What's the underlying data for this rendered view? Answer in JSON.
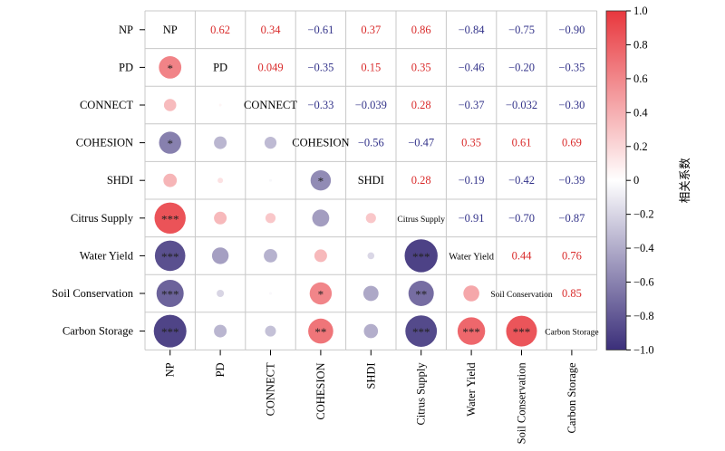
{
  "chart_data": {
    "type": "heatmap",
    "style": "correlation matrix: circles with significance stars in lower triangle, coefficient values in upper triangle, variable names on diagonal",
    "variables": [
      "NP",
      "PD",
      "CONNECT",
      "COHESION",
      "SHDI",
      "Citrus Supply",
      "Water Yield",
      "Soil Conservation",
      "Carbon Storage"
    ],
    "upper_labels": [
      [
        null,
        "0.62",
        "0.34",
        "−0.61",
        "0.37",
        "0.86",
        "−0.84",
        "−0.75",
        "−0.90"
      ],
      [
        null,
        null,
        "0.049",
        "−0.35",
        "0.15",
        "0.35",
        "−0.46",
        "−0.20",
        "−0.35"
      ],
      [
        null,
        null,
        null,
        "−0.33",
        "−0.039",
        "0.28",
        "−0.37",
        "−0.032",
        "−0.30"
      ],
      [
        null,
        null,
        null,
        null,
        "−0.56",
        "−0.47",
        "0.35",
        "0.61",
        "0.69"
      ],
      [
        null,
        null,
        null,
        null,
        null,
        "0.28",
        "−0.19",
        "−0.42",
        "−0.39"
      ],
      [
        null,
        null,
        null,
        null,
        null,
        null,
        "−0.91",
        "−0.70",
        "−0.87"
      ],
      [
        null,
        null,
        null,
        null,
        null,
        null,
        null,
        "0.44",
        "0.76"
      ],
      [
        null,
        null,
        null,
        null,
        null,
        null,
        null,
        null,
        "0.85"
      ],
      [
        null,
        null,
        null,
        null,
        null,
        null,
        null,
        null,
        null
      ]
    ],
    "matrix": [
      [
        1,
        0.62,
        0.34,
        -0.61,
        0.37,
        0.86,
        -0.84,
        -0.75,
        -0.9
      ],
      [
        0.62,
        1,
        0.049,
        -0.35,
        0.15,
        0.35,
        -0.46,
        -0.2,
        -0.35
      ],
      [
        0.34,
        0.049,
        1,
        -0.33,
        -0.039,
        0.28,
        -0.37,
        -0.032,
        -0.3
      ],
      [
        -0.61,
        -0.35,
        -0.33,
        1,
        -0.56,
        -0.47,
        0.35,
        0.61,
        0.69
      ],
      [
        0.37,
        0.15,
        -0.039,
        -0.56,
        1,
        0.28,
        -0.19,
        -0.42,
        -0.39
      ],
      [
        0.86,
        0.35,
        0.28,
        -0.47,
        0.28,
        1,
        -0.91,
        -0.7,
        -0.87
      ],
      [
        -0.84,
        -0.46,
        -0.37,
        0.35,
        -0.19,
        -0.91,
        1,
        0.44,
        0.76
      ],
      [
        -0.75,
        -0.2,
        -0.032,
        0.61,
        -0.42,
        -0.7,
        0.44,
        1,
        0.85
      ],
      [
        -0.9,
        -0.35,
        -0.3,
        0.69,
        -0.39,
        -0.87,
        0.76,
        0.85,
        1
      ]
    ],
    "significance": [
      [
        null,
        null,
        null,
        null,
        null,
        null,
        null,
        null,
        null
      ],
      [
        "*",
        null,
        null,
        null,
        null,
        null,
        null,
        null,
        null
      ],
      [
        "",
        "",
        null,
        null,
        null,
        null,
        null,
        null,
        null
      ],
      [
        "*",
        "",
        "",
        null,
        null,
        null,
        null,
        null,
        null
      ],
      [
        "",
        "",
        "",
        "*",
        null,
        null,
        null,
        null,
        null
      ],
      [
        "***",
        "",
        "",
        "",
        "",
        null,
        null,
        null,
        null
      ],
      [
        "***",
        "",
        "",
        "",
        "",
        "***",
        null,
        null,
        null
      ],
      [
        "***",
        "",
        "",
        "*",
        "",
        "**",
        "",
        null,
        null
      ],
      [
        "***",
        "",
        "",
        "**",
        "",
        "***",
        "***",
        "***",
        null
      ]
    ],
    "colorbar": {
      "label": "相关系数",
      "range": [
        -1.0,
        1.0
      ],
      "ticks": [
        "1.0",
        "0.8",
        "0.6",
        "0.4",
        "0.2",
        "0",
        "−0.2",
        "−0.4",
        "−0.6",
        "−0.8",
        "−1.0"
      ],
      "tick_values": [
        1.0,
        0.8,
        0.6,
        0.4,
        0.2,
        0,
        -0.2,
        -0.4,
        -0.6,
        -0.8,
        -1.0
      ],
      "position": "right"
    },
    "colors": {
      "positive": "#e8373d",
      "neutral": "#ffffff",
      "negative": "#3b2f7a",
      "positive_text": "#d92b2b",
      "negative_text": "#33338a",
      "grid": "#c8c8c8"
    }
  }
}
